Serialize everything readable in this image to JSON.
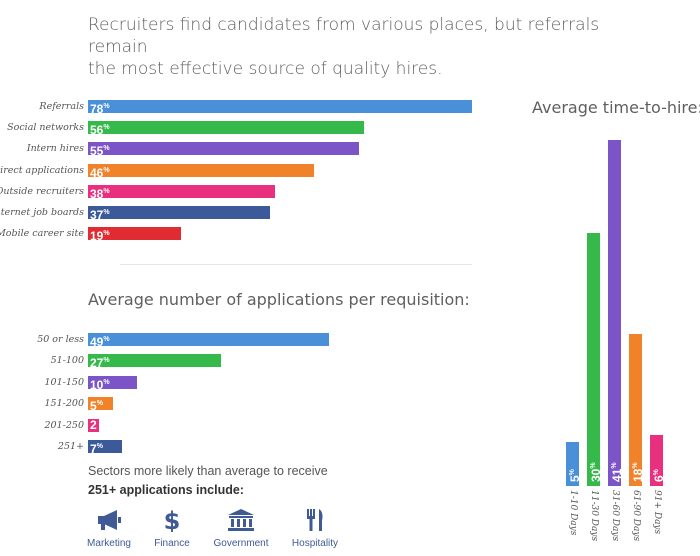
{
  "headline": {
    "line1": "Recruiters find candidates from various places, but referrals remain",
    "line2": "the most effective source of quality hires."
  },
  "colors": {
    "blue": "#4a90d9",
    "green": "#35b94a",
    "purple": "#7b55c8",
    "orange": "#f0822a",
    "pink": "#e8307e",
    "navy": "#3c5a9a",
    "red": "#e02b33"
  },
  "chart_data": [
    {
      "type": "bar",
      "orientation": "horizontal",
      "title": "",
      "categories": [
        "Referrals",
        "Social networks",
        "Intern hires",
        "Direct applications",
        "Outside recruiters",
        "Internet job boards",
        "Mobile career site"
      ],
      "values": [
        78,
        56,
        55,
        46,
        38,
        37,
        19
      ],
      "value_suffix": "%",
      "xlim": [
        0,
        100
      ]
    },
    {
      "type": "bar",
      "orientation": "horizontal",
      "title": "Average number of applications per requisition:",
      "categories": [
        "50 or less",
        "51-100",
        "101-150",
        "151-200",
        "201-250",
        "251+"
      ],
      "values": [
        49,
        27,
        10,
        5,
        2,
        7
      ],
      "value_suffix": [
        "%",
        "%",
        "%",
        "%",
        "",
        "%"
      ],
      "xlim": [
        0,
        100
      ]
    },
    {
      "type": "bar",
      "orientation": "vertical",
      "title": "Average time-to-hire:",
      "categories": [
        "1-10 Days",
        "11-30 Days",
        "31-60 Days",
        "61-90 Days",
        "91+ Days"
      ],
      "values": [
        5,
        30,
        41,
        18,
        6
      ],
      "value_suffix": "%",
      "ylim": [
        0,
        41
      ]
    }
  ],
  "sectors": {
    "line1": "Sectors more likely than average to receive",
    "line2": "251+ applications include:",
    "items": [
      {
        "label": "Marketing",
        "icon": "megaphone-icon"
      },
      {
        "label": "Finance",
        "icon": "dollar-icon"
      },
      {
        "label": "Government",
        "icon": "government-building-icon"
      },
      {
        "label": "Hospitality",
        "icon": "fork-knife-icon"
      }
    ]
  }
}
